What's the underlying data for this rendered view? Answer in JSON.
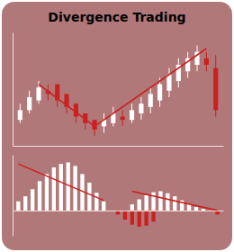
{
  "chart_data": [
    {
      "type": "candlestick",
      "title": "Divergence Trading",
      "categories": [
        null,
        null,
        null,
        null,
        null,
        null,
        null,
        null,
        null,
        null,
        null,
        null,
        null,
        null,
        null,
        null,
        null,
        null,
        null,
        null,
        null,
        null
      ],
      "open": [
        1.5,
        1.8,
        2.1,
        2.4,
        2.6,
        2.3,
        2.0,
        1.7,
        1.5,
        1.3,
        1.4,
        1.6,
        1.5,
        1.7,
        1.9,
        2.1,
        2.4,
        2.7,
        3.0,
        3.2,
        3.4,
        3.1
      ],
      "close": [
        1.8,
        2.2,
        2.5,
        2.3,
        2.1,
        1.9,
        1.6,
        1.4,
        1.2,
        1.5,
        1.7,
        1.5,
        1.8,
        2.0,
        2.3,
        2.6,
        2.9,
        3.2,
        3.4,
        3.6,
        3.2,
        1.8
      ],
      "high": [
        2.0,
        2.4,
        2.7,
        2.6,
        2.4,
        2.2,
        1.9,
        1.7,
        1.5,
        1.7,
        1.9,
        1.8,
        2.0,
        2.2,
        2.5,
        2.8,
        3.1,
        3.4,
        3.6,
        3.8,
        3.6,
        3.5
      ],
      "low": [
        1.4,
        1.7,
        2.0,
        2.1,
        1.9,
        1.7,
        1.4,
        1.2,
        1.0,
        1.1,
        1.3,
        1.3,
        1.4,
        1.5,
        1.7,
        1.9,
        2.2,
        2.5,
        2.8,
        3.0,
        3.0,
        1.6
      ],
      "colors": [
        "#ffffff",
        "#ffffff",
        "#ffffff",
        "#cc2020",
        "#cc2020",
        "#cc2020",
        "#cc2020",
        "#cc2020",
        "#cc2020",
        "#ffffff",
        "#ffffff",
        "#cc2020",
        "#ffffff",
        "#ffffff",
        "#ffffff",
        "#ffffff",
        "#ffffff",
        "#ffffff",
        "#ffffff",
        "#ffffff",
        "#cc2020",
        "#cc2020"
      ],
      "series": [
        {
          "type": "line",
          "color": "#cc2020",
          "x": [
            2,
            8
          ],
          "values": [
            2.6,
            1.3
          ]
        },
        {
          "type": "line",
          "color": "#cc2020",
          "x": [
            8,
            20
          ],
          "values": [
            1.3,
            3.7
          ]
        }
      ],
      "ylim": [
        0.7,
        4.2
      ],
      "tick_labels": false
    },
    {
      "type": "bar",
      "stacked": true,
      "categories": [
        null,
        null,
        null,
        null,
        null,
        null,
        null,
        null,
        null,
        null,
        null,
        null,
        null,
        null,
        null,
        null,
        null,
        null,
        null,
        null,
        null,
        null,
        null,
        null,
        null,
        null,
        null,
        null,
        null
      ],
      "series": [
        {
          "color": "#ffffff",
          "values": [
            0.18,
            0.28,
            0.42,
            0.58,
            0.72,
            0.85,
            0.92,
            0.95,
            0.88,
            0.72,
            0.55,
            0.35,
            0.18,
            0.0,
            0.0,
            0.0,
            0.12,
            0.22,
            0.3,
            0.36,
            0.38,
            0.34,
            0.28,
            0.2,
            0.13,
            0.07,
            0.03,
            0.0,
            0.0
          ]
        },
        {
          "color": "#cc2020",
          "values": [
            0.0,
            0.0,
            0.0,
            0.0,
            0.0,
            0.0,
            0.0,
            0.0,
            0.0,
            0.0,
            0.0,
            0.0,
            0.0,
            0.0,
            -0.08,
            -0.18,
            -0.28,
            -0.32,
            -0.3,
            -0.22,
            -0.0,
            0.0,
            0.0,
            0.0,
            0.0,
            0.0,
            0.0,
            0.0,
            -0.08
          ]
        },
        {
          "type": "line",
          "color": "#cc2020",
          "x": [
            0,
            12
          ],
          "values": [
            0.92,
            0.2
          ]
        },
        {
          "type": "line",
          "color": "#cc2020",
          "x": [
            16,
            28
          ],
          "values": [
            0.38,
            0.0
          ]
        }
      ],
      "ylim": [
        -0.5,
        1.1
      ],
      "tick_labels": false
    }
  ]
}
